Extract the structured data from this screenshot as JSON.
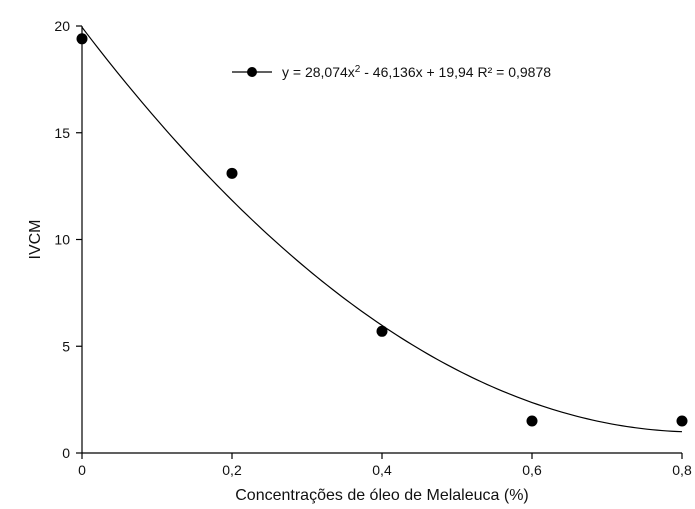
{
  "chart_data": {
    "type": "scatter",
    "xlabel": "Concentrações de óleo de Melaleuca (%)",
    "ylabel": "IVCM",
    "xlim": [
      0,
      0.8
    ],
    "ylim": [
      0,
      20
    ],
    "x_ticks": [
      0,
      0.2,
      0.4,
      0.6,
      0.8
    ],
    "x_tick_labels": [
      "0",
      "0,2",
      "0,4",
      "0,6",
      "0,8"
    ],
    "y_ticks": [
      0,
      5,
      10,
      15,
      20
    ],
    "y_tick_labels": [
      "0",
      "5",
      "10",
      "15",
      "20"
    ],
    "grid": false,
    "series": [
      {
        "x": [
          0,
          0.2,
          0.4,
          0.6,
          0.8
        ],
        "y": [
          19.4,
          13.1,
          5.7,
          1.5,
          1.5
        ],
        "marker_color": "#000000"
      }
    ],
    "trendline": {
      "type": "polynomial",
      "coefficients": [
        28.074,
        -46.136,
        19.94
      ],
      "color": "#000000"
    },
    "legend": {
      "placement": "top-right",
      "equation_prefix": "y = 28,074x",
      "equation_exponent": "2",
      "equation_suffix": " - 46,136x + 19,94 R² = 0,9878"
    }
  }
}
